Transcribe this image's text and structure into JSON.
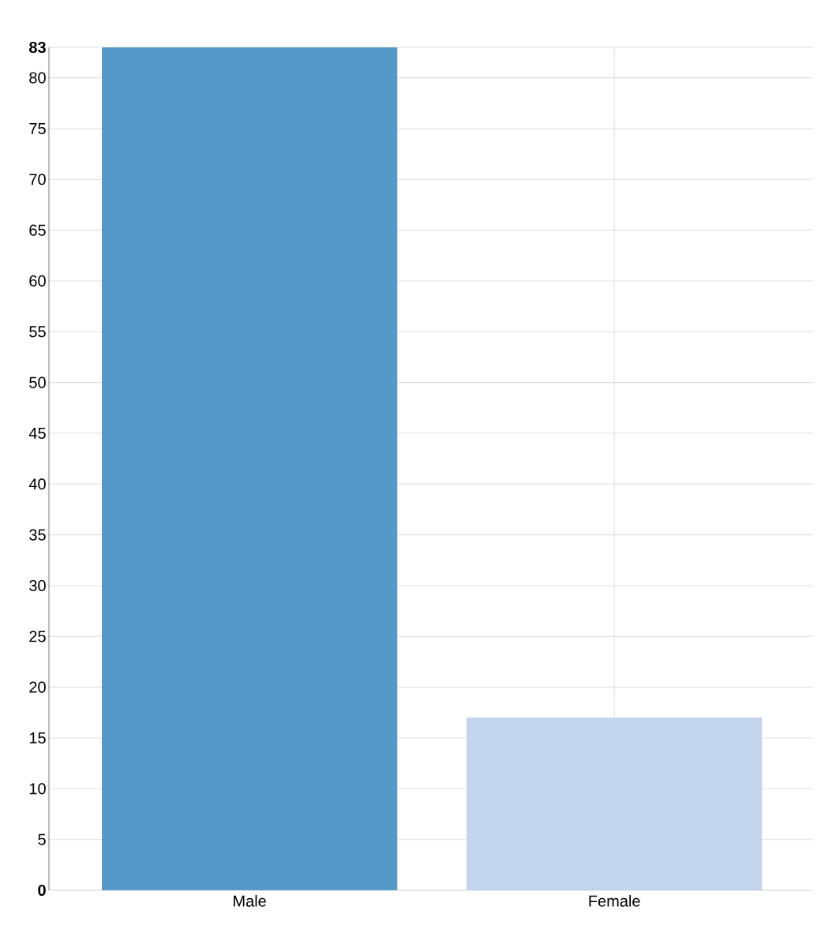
{
  "chart_data": {
    "type": "bar",
    "categories": [
      "Male",
      "Female"
    ],
    "values": [
      83,
      17
    ],
    "colors": [
      "#5499c7",
      "#c2d5ec"
    ],
    "ylim": [
      0,
      83
    ],
    "yticks": [
      0,
      5,
      10,
      15,
      20,
      25,
      30,
      35,
      40,
      45,
      50,
      55,
      60,
      65,
      70,
      75,
      80,
      83
    ],
    "grid": true
  }
}
